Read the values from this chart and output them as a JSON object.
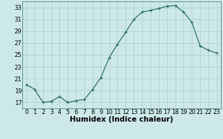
{
  "x": [
    0,
    1,
    2,
    3,
    4,
    5,
    6,
    7,
    8,
    9,
    10,
    11,
    12,
    13,
    14,
    15,
    16,
    17,
    18,
    19,
    20,
    21,
    22,
    23
  ],
  "y": [
    20.0,
    19.2,
    17.0,
    17.2,
    18.0,
    17.0,
    17.3,
    17.5,
    19.2,
    21.2,
    24.5,
    26.8,
    28.8,
    31.0,
    32.2,
    32.5,
    32.8,
    33.2,
    33.3,
    32.2,
    30.5,
    26.5,
    25.8,
    25.3
  ],
  "xlabel": "Humidex (Indice chaleur)",
  "background_color": "#cce8e8",
  "grid_color": "#aacccc",
  "line_color": "#2e6e60",
  "marker_color": "#2e6e60",
  "xlim": [
    -0.5,
    23.5
  ],
  "ylim": [
    16,
    34
  ],
  "yticks": [
    17,
    19,
    21,
    23,
    25,
    27,
    29,
    31,
    33
  ],
  "xticks": [
    0,
    1,
    2,
    3,
    4,
    5,
    6,
    7,
    8,
    9,
    10,
    11,
    12,
    13,
    14,
    15,
    16,
    17,
    18,
    19,
    20,
    21,
    22,
    23
  ],
  "tick_fontsize": 6.0,
  "xlabel_fontsize": 7.5
}
